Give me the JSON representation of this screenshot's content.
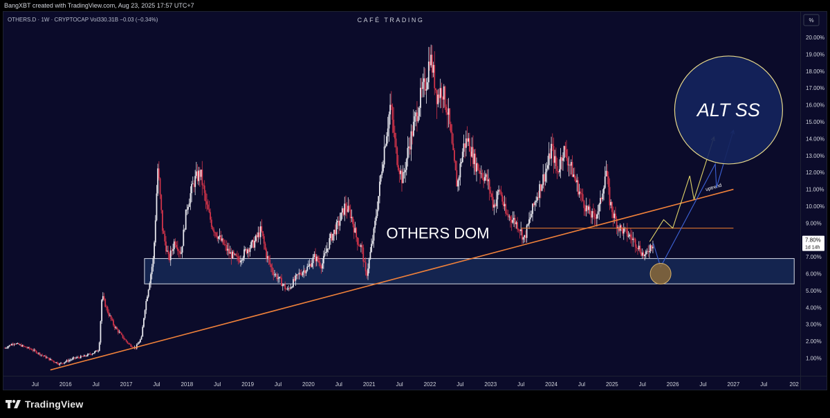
{
  "attribution": "BangXBT created with TradingView.com, Aug 23, 2025 17:57 UTC+7",
  "footer_brand": "TradingView",
  "colors": {
    "background": "#0b0b2a",
    "candle_up": "#e8e8ee",
    "candle_down": "#d3344a",
    "trendline": "#f0813a",
    "support_line": "#e0762f",
    "zone_fill": "#1d3a6e",
    "zone_border": "#d8dce8",
    "circle_fill": "#15245c",
    "circle_border": "#e8d98a",
    "target_fill": "#8a6a3a",
    "yellow_path": "#e0d46a",
    "blue_path": "#3e63d8"
  },
  "chart_data": {
    "type": "candlestick",
    "symbol_header": "OTHERS.D · 1W · CRYPTOCAP  Vol330.31B  −0.03 (−0.34%)",
    "watermark": "CAFÉ TRADING",
    "y_unit_label": "%",
    "y_ticks": [
      "1.00%",
      "2.00%",
      "3.00%",
      "4.00%",
      "5.00%",
      "6.00%",
      "7.00%",
      "8.00%",
      "9.00%",
      "10.00%",
      "11.00%",
      "12.00%",
      "13.00%",
      "14.00%",
      "15.00%",
      "16.00%",
      "17.00%",
      "18.00%",
      "19.00%",
      "20.00%"
    ],
    "ylim": [
      0.2,
      20.7
    ],
    "xlim": [
      2015.0,
      2028.1
    ],
    "x_ticks": [
      {
        "t": 2015.5,
        "label": "Jul"
      },
      {
        "t": 2016.0,
        "label": "2016"
      },
      {
        "t": 2016.5,
        "label": "Jul"
      },
      {
        "t": 2017.0,
        "label": "2017"
      },
      {
        "t": 2017.5,
        "label": "Jul"
      },
      {
        "t": 2018.0,
        "label": "2018"
      },
      {
        "t": 2018.5,
        "label": "Jul"
      },
      {
        "t": 2019.0,
        "label": "2019"
      },
      {
        "t": 2019.5,
        "label": "Jul"
      },
      {
        "t": 2020.0,
        "label": "2020"
      },
      {
        "t": 2020.5,
        "label": "Jul"
      },
      {
        "t": 2021.0,
        "label": "2021"
      },
      {
        "t": 2021.5,
        "label": "Jul"
      },
      {
        "t": 2022.0,
        "label": "2022"
      },
      {
        "t": 2022.5,
        "label": "Jul"
      },
      {
        "t": 2023.0,
        "label": "2023"
      },
      {
        "t": 2023.5,
        "label": "Jul"
      },
      {
        "t": 2024.0,
        "label": "2024"
      },
      {
        "t": 2024.5,
        "label": "Jul"
      },
      {
        "t": 2025.0,
        "label": "2025"
      },
      {
        "t": 2025.5,
        "label": "Jul"
      },
      {
        "t": 2026.0,
        "label": "2026"
      },
      {
        "t": 2026.5,
        "label": "Jul"
      },
      {
        "t": 2027.0,
        "label": "2027"
      },
      {
        "t": 2027.5,
        "label": "Jul"
      },
      {
        "t": 2028.0,
        "label": "202"
      }
    ],
    "price_path": [
      [
        2015.0,
        1.6
      ],
      [
        2015.15,
        1.9
      ],
      [
        2015.3,
        1.7
      ],
      [
        2015.45,
        1.5
      ],
      [
        2015.6,
        1.2
      ],
      [
        2015.75,
        0.9
      ],
      [
        2015.9,
        0.65
      ],
      [
        2016.0,
        0.8
      ],
      [
        2016.15,
        1.0
      ],
      [
        2016.3,
        1.1
      ],
      [
        2016.45,
        1.3
      ],
      [
        2016.55,
        1.5
      ],
      [
        2016.6,
        4.7
      ],
      [
        2016.7,
        3.7
      ],
      [
        2016.8,
        2.9
      ],
      [
        2016.95,
        2.2
      ],
      [
        2017.05,
        1.8
      ],
      [
        2017.15,
        1.6
      ],
      [
        2017.25,
        2.2
      ],
      [
        2017.3,
        3.8
      ],
      [
        2017.38,
        5.5
      ],
      [
        2017.45,
        7.0
      ],
      [
        2017.52,
        12.3
      ],
      [
        2017.6,
        8.5
      ],
      [
        2017.7,
        6.8
      ],
      [
        2017.8,
        8.0
      ],
      [
        2017.9,
        7.2
      ],
      [
        2018.0,
        10.0
      ],
      [
        2018.12,
        11.5
      ],
      [
        2018.22,
        12.0
      ],
      [
        2018.32,
        10.0
      ],
      [
        2018.42,
        8.8
      ],
      [
        2018.55,
        8.0
      ],
      [
        2018.7,
        7.2
      ],
      [
        2018.85,
        6.8
      ],
      [
        2019.0,
        7.5
      ],
      [
        2019.1,
        7.8
      ],
      [
        2019.22,
        8.6
      ],
      [
        2019.3,
        7.2
      ],
      [
        2019.4,
        6.2
      ],
      [
        2019.55,
        5.5
      ],
      [
        2019.65,
        5.0
      ],
      [
        2019.75,
        5.5
      ],
      [
        2019.85,
        6.0
      ],
      [
        2020.0,
        6.4
      ],
      [
        2020.1,
        7.0
      ],
      [
        2020.22,
        6.5
      ],
      [
        2020.35,
        8.0
      ],
      [
        2020.5,
        9.0
      ],
      [
        2020.6,
        10.0
      ],
      [
        2020.7,
        9.5
      ],
      [
        2020.8,
        8.0
      ],
      [
        2020.88,
        7.5
      ],
      [
        2020.95,
        5.8
      ],
      [
        2021.0,
        6.8
      ],
      [
        2021.08,
        8.5
      ],
      [
        2021.15,
        10.5
      ],
      [
        2021.25,
        13.5
      ],
      [
        2021.35,
        16.0
      ],
      [
        2021.45,
        13.0
      ],
      [
        2021.55,
        11.5
      ],
      [
        2021.65,
        13.5
      ],
      [
        2021.75,
        15.0
      ],
      [
        2021.85,
        16.5
      ],
      [
        2021.95,
        17.5
      ],
      [
        2022.0,
        19.0
      ],
      [
        2022.05,
        18.0
      ],
      [
        2022.12,
        16.5
      ],
      [
        2022.2,
        17.0
      ],
      [
        2022.3,
        15.5
      ],
      [
        2022.38,
        13.0
      ],
      [
        2022.45,
        11.2
      ],
      [
        2022.55,
        13.5
      ],
      [
        2022.62,
        14.0
      ],
      [
        2022.75,
        12.5
      ],
      [
        2022.85,
        12.0
      ],
      [
        2022.95,
        11.5
      ],
      [
        2023.05,
        10.0
      ],
      [
        2023.15,
        11.0
      ],
      [
        2023.25,
        9.5
      ],
      [
        2023.38,
        9.2
      ],
      [
        2023.48,
        8.7
      ],
      [
        2023.55,
        8.0
      ],
      [
        2023.65,
        9.3
      ],
      [
        2023.75,
        10.5
      ],
      [
        2023.85,
        11.5
      ],
      [
        2023.95,
        12.5
      ],
      [
        2024.0,
        13.5
      ],
      [
        2024.1,
        12.0
      ],
      [
        2024.2,
        13.4
      ],
      [
        2024.3,
        12.5
      ],
      [
        2024.4,
        11.5
      ],
      [
        2024.5,
        10.5
      ],
      [
        2024.6,
        9.7
      ],
      [
        2024.7,
        9.3
      ],
      [
        2024.8,
        10.0
      ],
      [
        2024.9,
        12.2
      ],
      [
        2024.95,
        10.5
      ],
      [
        2025.02,
        9.5
      ],
      [
        2025.1,
        8.8
      ],
      [
        2025.2,
        8.5
      ],
      [
        2025.3,
        8.2
      ],
      [
        2025.4,
        7.8
      ],
      [
        2025.5,
        7.2
      ],
      [
        2025.55,
        7.0
      ],
      [
        2025.62,
        7.6
      ],
      [
        2025.68,
        7.8
      ]
    ],
    "annotations": {
      "current_price_label": "7.80%",
      "countdown_label": "1d 14h",
      "center_label": "OTHERS DOM",
      "circle_label": "ALT SS",
      "trendline_label": "uptrend",
      "trendline": [
        [
          2015.75,
          0.3
        ],
        [
          2027.0,
          11.0
        ]
      ],
      "support_level": 8.7,
      "support_range": [
        2023.5,
        2027.0
      ],
      "zone": {
        "x0": 2017.3,
        "x1": 2028.0,
        "y0": 5.4,
        "y1": 6.9
      },
      "target_circle": {
        "x": 2025.8,
        "y": 6.0
      },
      "big_circle": {
        "x": 2026.92,
        "y": 15.7
      },
      "yellow_path": [
        [
          2025.62,
          7.9
        ],
        [
          2025.85,
          9.2
        ],
        [
          2026.0,
          8.7
        ],
        [
          2026.28,
          11.8
        ],
        [
          2026.35,
          10.4
        ],
        [
          2026.68,
          14.1
        ]
      ],
      "blue_path": [
        [
          2025.68,
          7.8
        ],
        [
          2025.8,
          6.4
        ],
        [
          2026.7,
          12.5
        ],
        [
          2026.72,
          11.1
        ],
        [
          2027.0,
          14.5
        ]
      ]
    }
  }
}
